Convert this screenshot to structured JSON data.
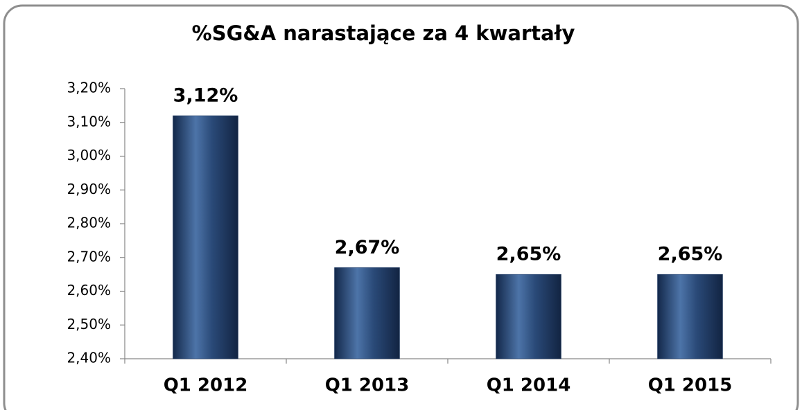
{
  "chart_data": {
    "type": "bar",
    "title": "%SG&A narastające za 4 kwartały",
    "categories": [
      "Q1 2012",
      "Q1 2013",
      "Q1 2014",
      "Q1 2015"
    ],
    "values": [
      3.12,
      2.67,
      2.65,
      2.65
    ],
    "value_labels": [
      "3,12%",
      "2,67%",
      "2,65%",
      "2,65%"
    ],
    "color": "#1f3a64",
    "ylim": [
      2.4,
      3.2
    ],
    "yticks": [
      {
        "value": 2.4,
        "label": "2,40%"
      },
      {
        "value": 2.5,
        "label": "2,50%"
      },
      {
        "value": 2.6,
        "label": "2,60%"
      },
      {
        "value": 2.7,
        "label": "2,70%"
      },
      {
        "value": 2.8,
        "label": "2,80%"
      },
      {
        "value": 2.9,
        "label": "2,90%"
      },
      {
        "value": 3.0,
        "label": "3,00%"
      },
      {
        "value": 3.1,
        "label": "3,10%"
      },
      {
        "value": 3.2,
        "label": "3,20%"
      }
    ],
    "grid": false
  }
}
